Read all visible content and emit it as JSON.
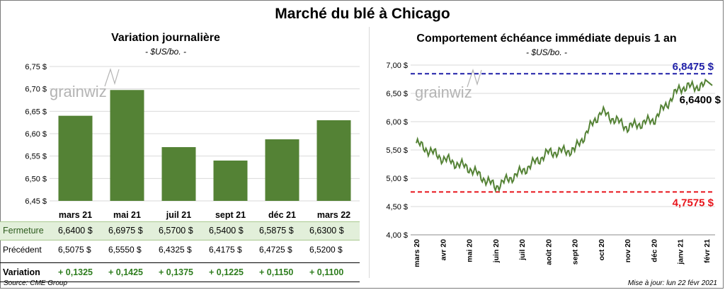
{
  "title": "Marché du blé à Chicago",
  "left_chart": {
    "title": "Variation  journalière",
    "subtitle": "- $US/bo. -",
    "watermark": "grainwiz",
    "yticks": [
      "6,75 $",
      "6,70 $",
      "6,65 $",
      "6,60 $",
      "6,55 $",
      "6,50 $",
      "6,45 $"
    ]
  },
  "right_chart": {
    "title": "Comportement  échéance immédiate depuis 1 an",
    "subtitle": "- $US/bo. -",
    "watermark": "grainwiz",
    "yticks": [
      "7,00 $",
      "6,50 $",
      "6,00 $",
      "5,50 $",
      "5,00 $",
      "4,50 $",
      "4,00 $"
    ],
    "xticks": [
      "mars 20",
      "avr 20",
      "mai 20",
      "juin 20",
      "juil 20",
      "août 20",
      "sept 20",
      "oct 20",
      "nov 20",
      "déc 20",
      "janv 21",
      "févr 21"
    ],
    "high_label": "6,8475 $",
    "low_label": "4,7575 $",
    "last_label": "6,6400 $"
  },
  "chart_data": [
    {
      "type": "bar",
      "title": "Variation  journalière",
      "subtitle": "- $US/bo. -",
      "categories": [
        "mars 21",
        "mai 21",
        "juil 21",
        "sept 21",
        "déc 21",
        "mars 22"
      ],
      "values": [
        6.64,
        6.6975,
        6.57,
        6.54,
        6.5875,
        6.63
      ],
      "ylim": [
        6.45,
        6.75
      ],
      "color": "#548235"
    },
    {
      "type": "line",
      "title": "Comportement  échéance immédiate depuis 1 an",
      "subtitle": "- $US/bo. -",
      "x": [
        "mars 20",
        "avr 20",
        "mai 20",
        "juin 20",
        "juil 20",
        "août 20",
        "sept 20",
        "oct 20",
        "nov 20",
        "déc 20",
        "janv 21",
        "févr 21"
      ],
      "values": [
        5.62,
        5.35,
        5.18,
        4.85,
        5.12,
        5.45,
        5.5,
        6.18,
        5.9,
        6.03,
        6.6,
        6.64
      ],
      "ylim": [
        4.0,
        7.0
      ],
      "high": 6.8475,
      "low": 4.7575,
      "last": 6.64,
      "color": "#548235",
      "high_color": "#1f1fa8",
      "low_color": "#e8141b"
    }
  ],
  "table": {
    "rows": [
      {
        "label": "Fermeture",
        "values": [
          "6,6400  $",
          "6,6975  $",
          "6,5700  $",
          "6,5400  $",
          "6,5875  $",
          "6,6300  $"
        ]
      },
      {
        "label": "Précédent",
        "values": [
          "6,5075  $",
          "6,5550  $",
          "6,4325  $",
          "6,4175  $",
          "6,4725  $",
          "6,5200  $"
        ]
      },
      {
        "label": "Variation",
        "values": [
          "+ 0,1325",
          "+ 0,1425",
          "+ 0,1375",
          "+ 0,1225",
          "+ 0,1150",
          "+ 0,1100"
        ]
      }
    ]
  },
  "footer": {
    "source": "Source: CME Group",
    "update": "Mise à jour: lun 22 févr 2021"
  }
}
